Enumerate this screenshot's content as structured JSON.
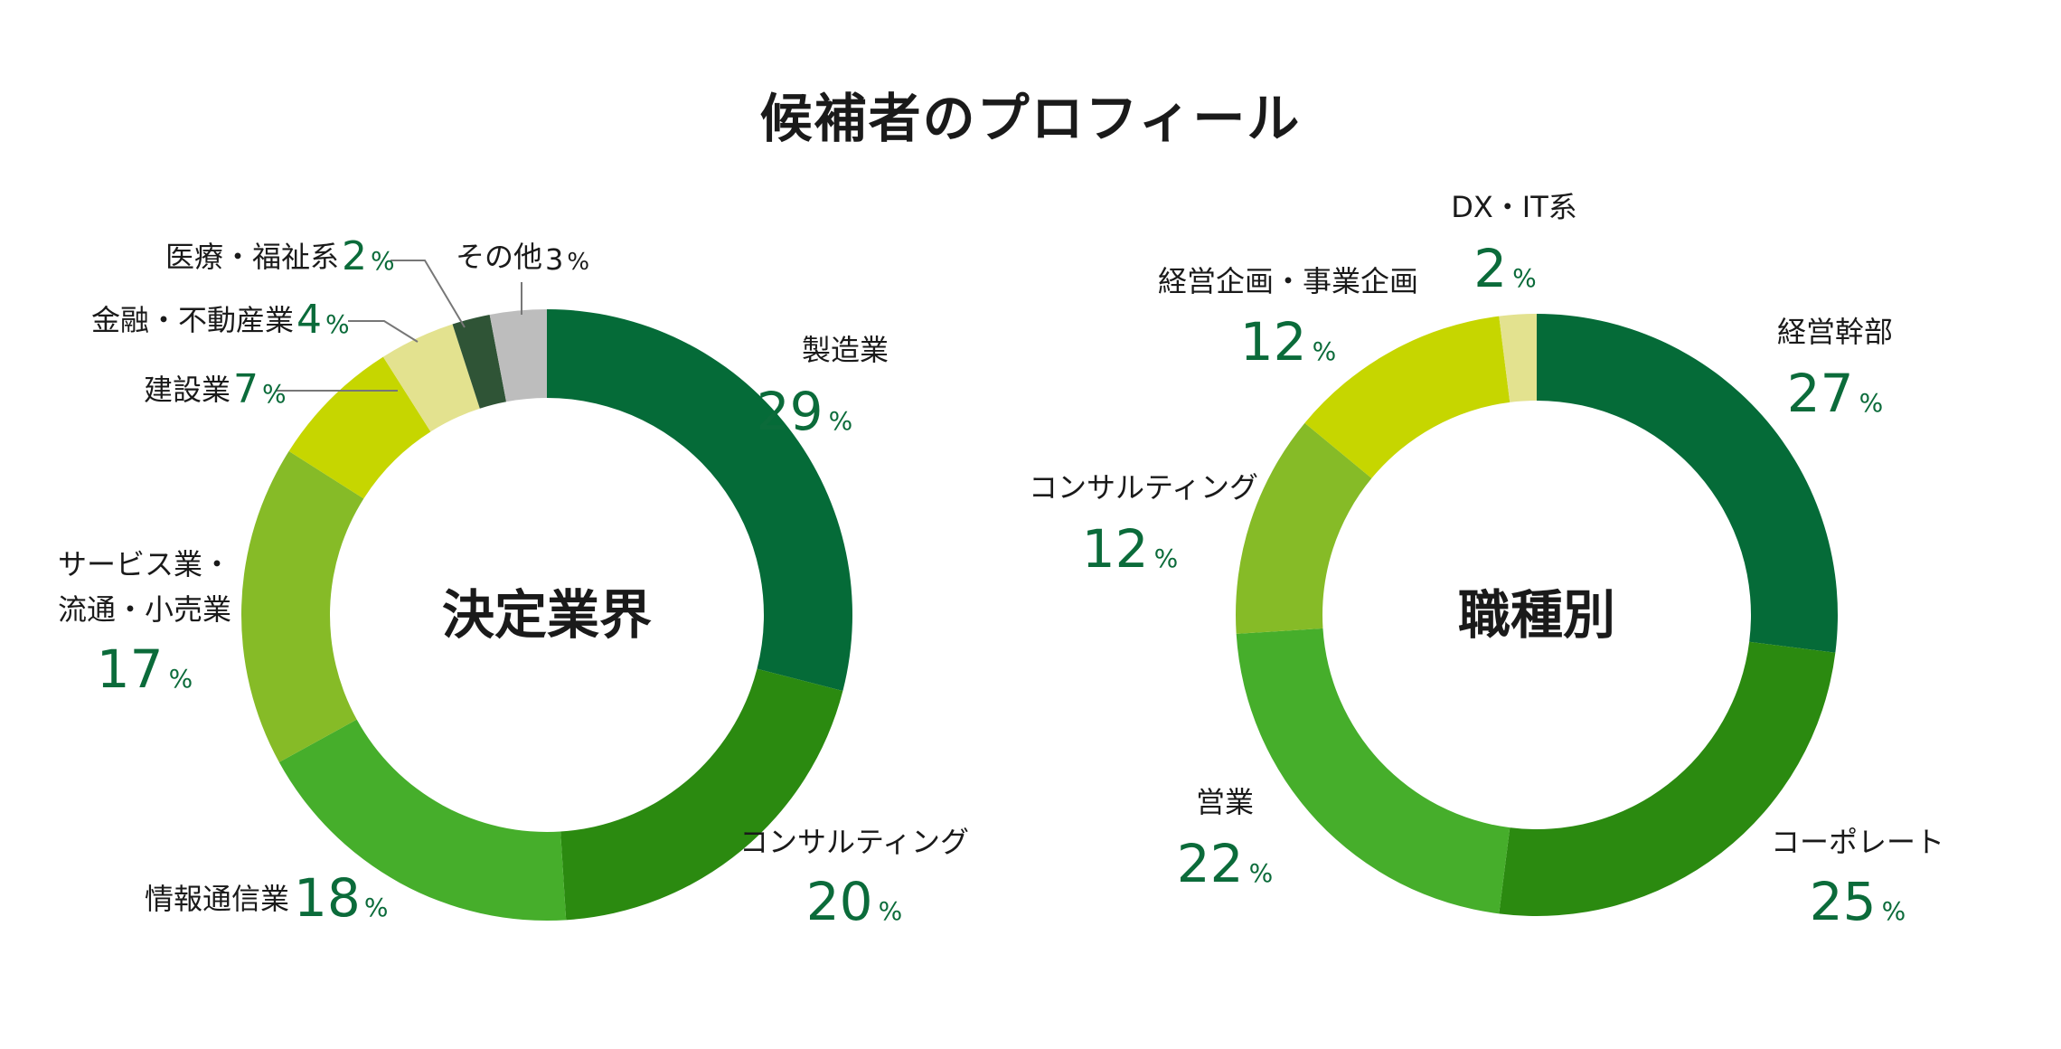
{
  "title": "候補者のプロフィール",
  "chart_data": [
    {
      "type": "pie",
      "center_label": "決定業界",
      "unit": "%",
      "slices": [
        {
          "label": "製造業",
          "value": 29,
          "color": "#056b38"
        },
        {
          "label": "コンサルティング",
          "value": 20,
          "color": "#2b8a10"
        },
        {
          "label": "情報通信業",
          "value": 18,
          "color": "#46ae2b"
        },
        {
          "label": "サービス業・流通・小売業",
          "value": 17,
          "color": "#86bb27"
        },
        {
          "label": "建設業",
          "value": 7,
          "color": "#c6d600"
        },
        {
          "label": "金融・不動産業",
          "value": 4,
          "color": "#e3e28f"
        },
        {
          "label": "医療・福祉系",
          "value": 2,
          "color": "#2f5436"
        },
        {
          "label": "その他",
          "value": 3,
          "color": "#bdbdbd"
        }
      ]
    },
    {
      "type": "pie",
      "center_label": "職種別",
      "unit": "%",
      "slices": [
        {
          "label": "経営幹部",
          "value": 27,
          "color": "#056b38"
        },
        {
          "label": "コーポレート",
          "value": 25,
          "color": "#2b8a10"
        },
        {
          "label": "営業",
          "value": 22,
          "color": "#46ae2b"
        },
        {
          "label": "コンサルティング",
          "value": 12,
          "color": "#86bb27"
        },
        {
          "label": "経営企画・事業企画",
          "value": 12,
          "color": "#c6d600"
        },
        {
          "label": "DX・IT系",
          "value": 2,
          "color": "#e3e28f"
        }
      ]
    }
  ]
}
